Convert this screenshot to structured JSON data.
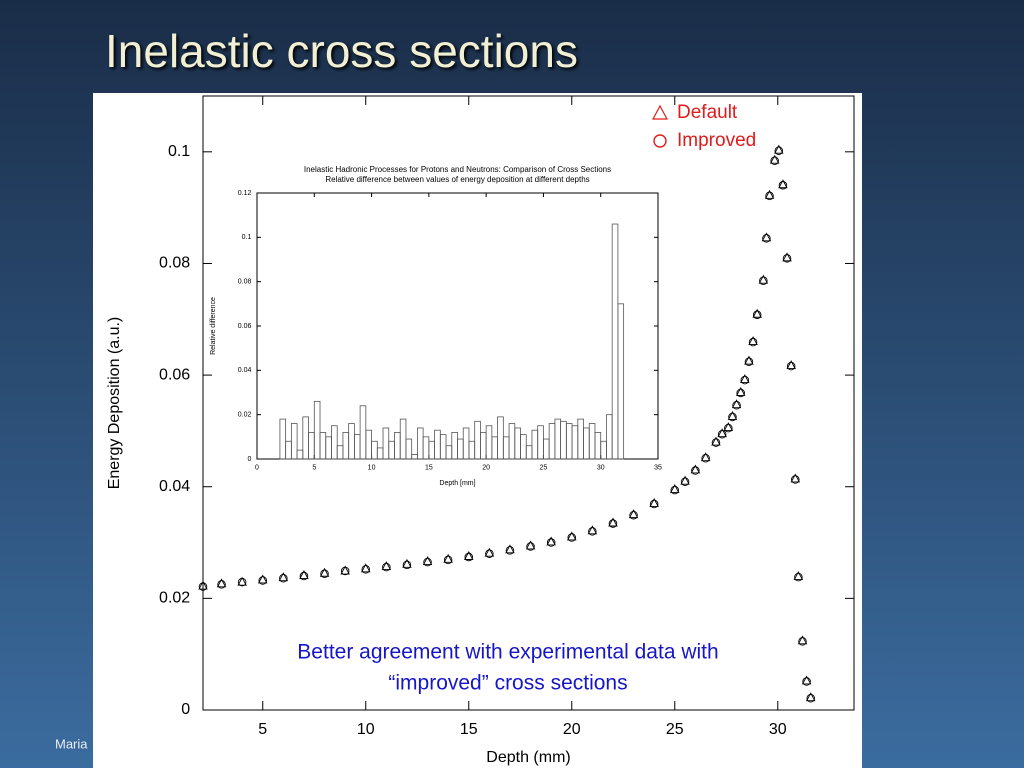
{
  "slide": {
    "title": "Inelastic cross sections",
    "footer": "Maria"
  },
  "chart_data": [
    {
      "type": "scatter",
      "x_label": "Depth (mm)",
      "y_label": "Energy Deposition (a.u.)",
      "annotation": [
        "Better agreement with experimental data with",
        "“improved” cross sections"
      ],
      "x": [
        2.1,
        3,
        4,
        5,
        6,
        7,
        8,
        9,
        10,
        11,
        12,
        13,
        14,
        15,
        16,
        17,
        18,
        19,
        20,
        21,
        22,
        23,
        24,
        25,
        25.5,
        26,
        26.5,
        27,
        27.3,
        27.6,
        27.8,
        28.0,
        28.2,
        28.4,
        28.6,
        28.8,
        29.0,
        29.3,
        29.45,
        29.6,
        29.85,
        30.05,
        30.25,
        30.45,
        30.65,
        30.85,
        31.0,
        31.2,
        31.4,
        31.6
      ],
      "series": [
        {
          "name": "Default",
          "color": "#000000",
          "marker": "triangle",
          "values": [
            0.0222,
            0.0226,
            0.0229,
            0.0233,
            0.0237,
            0.0241,
            0.0245,
            0.0249,
            0.0253,
            0.0257,
            0.0261,
            0.0266,
            0.027,
            0.0275,
            0.0281,
            0.0287,
            0.0294,
            0.0301,
            0.031,
            0.0321,
            0.0335,
            0.035,
            0.037,
            0.0395,
            0.041,
            0.043,
            0.0452,
            0.048,
            0.0495,
            0.0506,
            0.0526,
            0.0547,
            0.0569,
            0.0592,
            0.0625,
            0.066,
            0.0709,
            0.077,
            0.0846,
            0.0922,
            0.0985,
            0.1003,
            0.0941,
            0.081,
            0.0617,
            0.0414,
            0.0239,
            0.0124,
            0.0052,
            0.0022
          ]
        },
        {
          "name": "Improved",
          "color": "#000000",
          "marker": "circle",
          "values": [
            0.0221,
            0.0225,
            0.0229,
            0.0232,
            0.0236,
            0.024,
            0.0244,
            0.0249,
            0.0252,
            0.0256,
            0.026,
            0.0265,
            0.0269,
            0.0274,
            0.028,
            0.0286,
            0.0293,
            0.03,
            0.0309,
            0.032,
            0.0334,
            0.0349,
            0.0369,
            0.0394,
            0.0409,
            0.0429,
            0.0451,
            0.0479,
            0.0494,
            0.0505,
            0.0525,
            0.0546,
            0.0568,
            0.0591,
            0.0624,
            0.0659,
            0.0708,
            0.0769,
            0.0845,
            0.0921,
            0.0984,
            0.1002,
            0.094,
            0.0809,
            0.0616,
            0.0413,
            0.0238,
            0.0123,
            0.0051,
            0.0021
          ]
        }
      ],
      "legend_color": "#e01b1b",
      "xlim": [
        2.1,
        33.7
      ],
      "xticks": [
        5,
        10,
        15,
        20,
        25,
        30
      ],
      "ylim": [
        0,
        0.11
      ],
      "yticks": [
        0,
        0.02,
        0.04,
        0.06,
        0.08,
        0.1
      ]
    },
    {
      "type": "histogram",
      "title": "Inelastic Hadronic Processes for Protons and Neutrons: Comparison of Cross Sections",
      "subtitle": "Relative difference between values of energy deposition at different depths",
      "x_label": "Depth [mm]",
      "y_label": "Relative difference",
      "color": "#555555",
      "bins": [
        2,
        2.5,
        3,
        3.5,
        4,
        4.5,
        5,
        5.5,
        6,
        6.5,
        7,
        7.5,
        8,
        8.5,
        9,
        9.5,
        10,
        10.5,
        11,
        11.5,
        12,
        12.5,
        13,
        13.5,
        14,
        14.5,
        15,
        15.5,
        16,
        16.5,
        17,
        17.5,
        18,
        18.5,
        19,
        19.5,
        20,
        20.5,
        21,
        21.5,
        22,
        22.5,
        23,
        23.5,
        24,
        24.5,
        25,
        25.5,
        26,
        26.5,
        27,
        27.5,
        28,
        28.5,
        29,
        29.5,
        30,
        30.5,
        31,
        31.5,
        32
      ],
      "values": [
        0.018,
        0.008,
        0.016,
        0.004,
        0.019,
        0.012,
        0.026,
        0.012,
        0.01,
        0.015,
        0.006,
        0.012,
        0.016,
        0.011,
        0.024,
        0.013,
        0.008,
        0.005,
        0.014,
        0.008,
        0.012,
        0.018,
        0.009,
        0.002,
        0.014,
        0.01,
        0.008,
        0.013,
        0.011,
        0.006,
        0.012,
        0.009,
        0.014,
        0.008,
        0.017,
        0.012,
        0.015,
        0.01,
        0.019,
        0.01,
        0.016,
        0.014,
        0.011,
        0.006,
        0.013,
        0.015,
        0.009,
        0.016,
        0.018,
        0.017,
        0.016,
        0.015,
        0.018,
        0.014,
        0.016,
        0.012,
        0.008,
        0.02,
        0.106,
        0.07
      ],
      "xlim": [
        0,
        35
      ],
      "xticks": [
        0,
        5,
        10,
        15,
        20,
        25,
        30,
        35
      ],
      "ylim": [
        0,
        0.12
      ],
      "yticks": [
        0,
        0.02,
        0.04,
        0.06,
        0.08,
        0.1,
        0.12
      ]
    }
  ]
}
